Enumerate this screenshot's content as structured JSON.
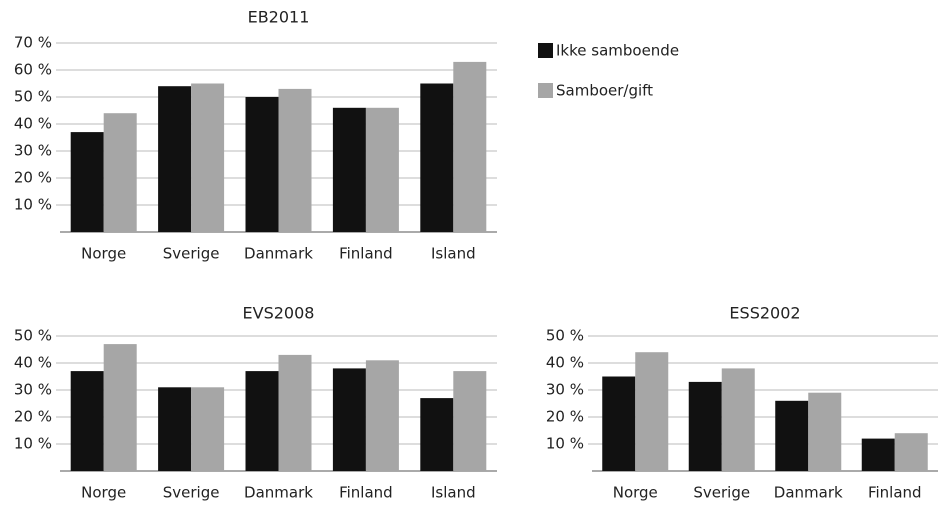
{
  "chart_data": [
    {
      "type": "bar",
      "title": "EB2011",
      "categories": [
        "Norge",
        "Sverige",
        "Danmark",
        "Finland",
        "Island"
      ],
      "series": [
        {
          "name": "Ikke samboende",
          "color": "#111111",
          "values": [
            37,
            54,
            50,
            46,
            55
          ]
        },
        {
          "name": "Samboer/gift",
          "color": "#a6a6a6",
          "values": [
            44,
            55,
            53,
            46,
            63
          ]
        }
      ],
      "ylim": [
        0,
        70
      ],
      "yticks": [
        {
          "value": 10,
          "label": "10 %"
        },
        {
          "value": 20,
          "label": "20 %"
        },
        {
          "value": 30,
          "label": "30 %"
        },
        {
          "value": 40,
          "label": "40 %"
        },
        {
          "value": 50,
          "label": "50 %"
        },
        {
          "value": 60,
          "label": "60 %"
        },
        {
          "value": 70,
          "label": "70 %"
        }
      ],
      "grid": true,
      "legend": "right"
    },
    {
      "type": "bar",
      "title": "EVS2008",
      "categories": [
        "Norge",
        "Sverige",
        "Danmark",
        "Finland",
        "Island"
      ],
      "series": [
        {
          "color": "#111111",
          "values": [
            37,
            31,
            37,
            38,
            27
          ]
        },
        {
          "color": "#a6a6a6",
          "values": [
            47,
            31,
            43,
            41,
            37
          ]
        }
      ],
      "ylim": [
        0,
        50
      ],
      "yticks": [
        {
          "value": 10,
          "label": "10 %"
        },
        {
          "value": 20,
          "label": "20 %"
        },
        {
          "value": 30,
          "label": "30 %"
        },
        {
          "value": 40,
          "label": "40 %"
        },
        {
          "value": 50,
          "label": "50 %"
        }
      ],
      "grid": true
    },
    {
      "type": "bar",
      "title": "ESS2002",
      "categories": [
        "Norge",
        "Sverige",
        "Danmark",
        "Finland"
      ],
      "series": [
        {
          "color": "#111111",
          "values": [
            35,
            33,
            26,
            12
          ]
        },
        {
          "color": "#a6a6a6",
          "values": [
            44,
            38,
            29,
            14
          ]
        }
      ],
      "ylim": [
        0,
        50
      ],
      "yticks": [
        {
          "value": 10,
          "label": "10 %"
        },
        {
          "value": 20,
          "label": "20 %"
        },
        {
          "value": 30,
          "label": "30 %"
        },
        {
          "value": 40,
          "label": "40 %"
        },
        {
          "value": 50,
          "label": "50 %"
        }
      ],
      "grid": true
    }
  ]
}
